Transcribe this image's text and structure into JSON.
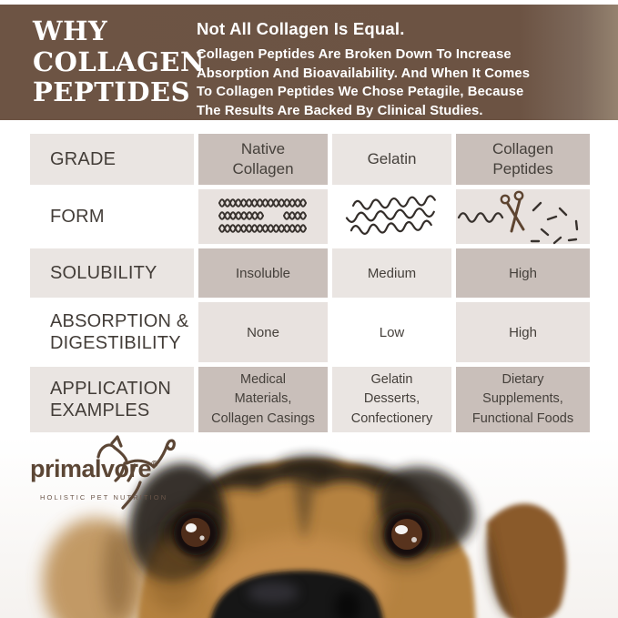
{
  "header": {
    "title_lines": [
      "WHY",
      "COLLAGEN",
      "PEPTIDES"
    ],
    "heading": "Not All Collagen Is Equal.",
    "body_lines": [
      "Collagen Peptides Are Broken Down To Increase",
      "Absorption And Bioavailability. And When It Comes",
      "To Collagen Peptides We Chose Petagile, Because",
      "The Results Are Backed By Clinical Studies."
    ]
  },
  "table": {
    "rows": [
      {
        "label_lines": [
          "GRADE"
        ],
        "values": [
          [
            "Native",
            "Collagen"
          ],
          [
            "Gelatin"
          ],
          [
            "Collagen",
            "Peptides"
          ]
        ]
      },
      {
        "label_lines": [
          "FORM"
        ],
        "icons": [
          {
            "name": "native-collagen-mesh-icon",
            "desc": "woven triple-helix strands"
          },
          {
            "name": "gelatin-wavy-strands-icon",
            "desc": "loose wavy strands"
          },
          {
            "name": "peptides-scissors-icon",
            "desc": "scissors cutting strand into small fragments"
          }
        ]
      },
      {
        "label_lines": [
          "SOLUBILITY"
        ],
        "values": [
          [
            "Insoluble"
          ],
          [
            "Medium"
          ],
          [
            "High"
          ]
        ]
      },
      {
        "label_lines": [
          "ABSORPTION &",
          "DIGESTIBILITY"
        ],
        "values": [
          [
            "None"
          ],
          [
            "Low"
          ],
          [
            "High"
          ]
        ]
      },
      {
        "label_lines": [
          "APPLICATION",
          "EXAMPLES"
        ],
        "values": [
          [
            "Medical",
            "Materials,",
            "Collagen Casings"
          ],
          [
            "Gelatin",
            "Desserts,",
            "Confectionery"
          ],
          [
            "Dietary",
            "Supplements,",
            "Functional Foods"
          ]
        ]
      }
    ]
  },
  "logo": {
    "brand": "primalvore",
    "registered_mark": "®",
    "tagline": "HOLISTIC PET NUTRITION"
  },
  "colors": {
    "band_brown": "#6D5444",
    "cell_dark_taupe": "#C9BFBA",
    "cell_light_gray": "#EAE5E2",
    "cell_light_taupe": "#E8E2DF",
    "table_text": "#45403B",
    "logo_brown": "#5C4635",
    "icon_charcoal": "#38322E",
    "scissors_brown": "#5D4430",
    "dog_tan": "#B5823F",
    "dog_dark_marking": "#241C14"
  }
}
